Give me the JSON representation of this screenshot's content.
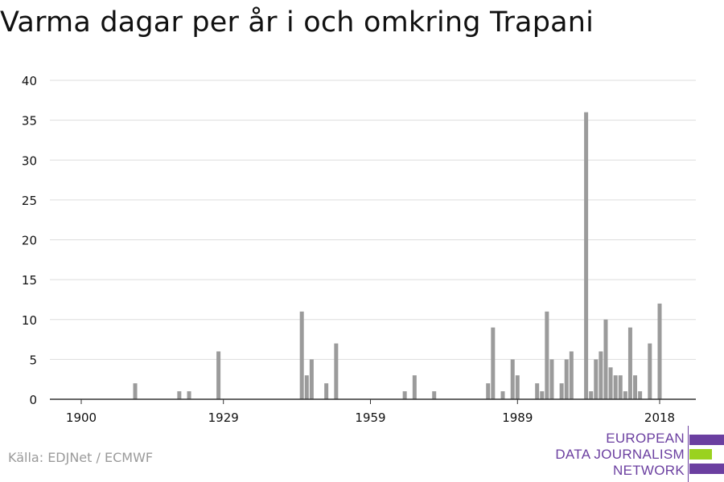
{
  "title": "Varma dagar per år i och omkring Trapani",
  "source": "Källa: EDJNet / ECMWF",
  "logo": {
    "lines": [
      "EUROPEAN",
      "DATA JOURNALISM",
      "NETWORK"
    ],
    "purple": "#6b3fa0",
    "green": "#9ad21f"
  },
  "colors": {
    "bar": "#9b9b9b",
    "grid": "#dddddd",
    "axis": "#333333",
    "text": "#111111"
  },
  "chart_data": {
    "type": "bar",
    "title": "Varma dagar per år i och omkring Trapani",
    "xlabel": "",
    "ylabel": "",
    "xlim": [
      1895,
      2022
    ],
    "ylim": [
      0,
      40
    ],
    "xticks": [
      1900,
      1929,
      1959,
      1989,
      2018
    ],
    "yticks": [
      0,
      5,
      10,
      15,
      20,
      25,
      30,
      35,
      40
    ],
    "grid": true,
    "years": [
      1911,
      1920,
      1922,
      1928,
      1945,
      1946,
      1947,
      1950,
      1952,
      1966,
      1968,
      1972,
      1983,
      1984,
      1986,
      1988,
      1989,
      1993,
      1994,
      1995,
      1996,
      1998,
      1999,
      2000,
      2003,
      2004,
      2005,
      2006,
      2007,
      2008,
      2009,
      2010,
      2011,
      2012,
      2013,
      2014,
      2016,
      2018
    ],
    "values": [
      2,
      1,
      1,
      6,
      11,
      3,
      5,
      2,
      7,
      1,
      3,
      1,
      2,
      9,
      1,
      5,
      3,
      2,
      1,
      11,
      5,
      2,
      5,
      6,
      36,
      1,
      5,
      6,
      10,
      4,
      3,
      3,
      1,
      9,
      3,
      1,
      7,
      12
    ]
  }
}
